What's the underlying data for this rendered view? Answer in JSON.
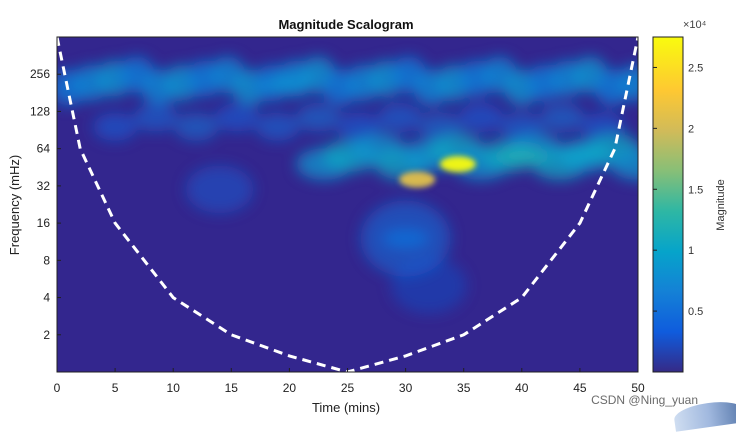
{
  "chart_data": {
    "type": "heatmap",
    "title": "Magnitude Scalogram",
    "xlabel": "Time (mins)",
    "ylabel": "Frequency (mHz)",
    "xlim": [
      0,
      50
    ],
    "ylim": [
      1,
      512
    ],
    "y_scale": "log2",
    "x_ticks": [
      0,
      5,
      10,
      15,
      20,
      25,
      30,
      35,
      40,
      45,
      50
    ],
    "y_ticks": [
      2,
      4,
      8,
      16,
      32,
      64,
      128,
      256
    ],
    "colorbar": {
      "label": "Magnitude",
      "min": 0,
      "max": 27500,
      "ticks": [
        0.5,
        1,
        1.5,
        2,
        2.5
      ],
      "tick_multiplier_label": "×10⁴",
      "colormap": "parula"
    },
    "features": [
      {
        "t": 34.5,
        "f": 48,
        "magnitude": 27500,
        "label": "peak"
      },
      {
        "t": 31,
        "f": 36,
        "magnitude": 21000,
        "label": "secondary peak"
      },
      {
        "t": 20,
        "f": 210,
        "magnitude": 8000,
        "label": "high-frequency band"
      },
      {
        "t": 40,
        "f": 56,
        "magnitude": 12000,
        "label": "band continuation"
      },
      {
        "t": 45,
        "f": 58,
        "magnitude": 10000,
        "label": "band continuation"
      },
      {
        "t": 30,
        "f": 12,
        "magnitude": 5000,
        "label": "low-frequency smear"
      }
    ],
    "cone_of_influence": {
      "style": "dashed white",
      "points": [
        {
          "t": 0,
          "f": 512
        },
        {
          "t": 2,
          "f": 64
        },
        {
          "t": 5,
          "f": 16
        },
        {
          "t": 10,
          "f": 4
        },
        {
          "t": 15,
          "f": 2
        },
        {
          "t": 20,
          "f": 1.35
        },
        {
          "t": 25,
          "f": 1
        },
        {
          "t": 30,
          "f": 1.35
        },
        {
          "t": 35,
          "f": 2
        },
        {
          "t": 40,
          "f": 4
        },
        {
          "t": 45,
          "f": 16
        },
        {
          "t": 48,
          "f": 64
        },
        {
          "t": 50,
          "f": 512
        }
      ]
    },
    "grid": false,
    "legend": "colorbar-right"
  },
  "watermark": "CSDN @Ning_yuan"
}
